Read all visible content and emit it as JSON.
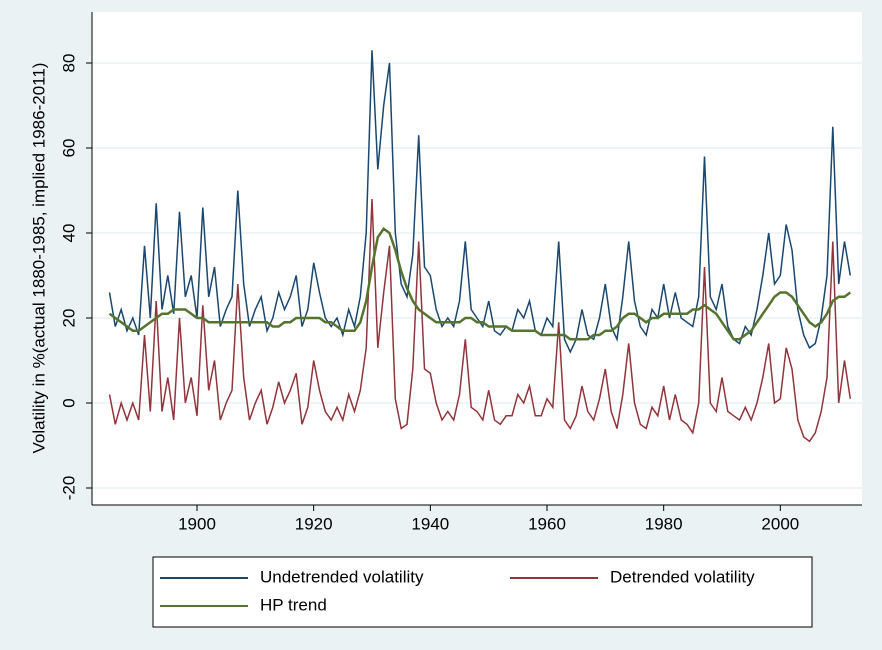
{
  "chart_data": {
    "type": "line",
    "y_label": "Volatility in %(actual 1880-1985, implied 1986-2011)",
    "x": [
      1885,
      1886,
      1887,
      1888,
      1889,
      1890,
      1891,
      1892,
      1893,
      1894,
      1895,
      1896,
      1897,
      1898,
      1899,
      1900,
      1901,
      1902,
      1903,
      1904,
      1905,
      1906,
      1907,
      1908,
      1909,
      1910,
      1911,
      1912,
      1913,
      1914,
      1915,
      1916,
      1917,
      1918,
      1919,
      1920,
      1921,
      1922,
      1923,
      1924,
      1925,
      1926,
      1927,
      1928,
      1929,
      1930,
      1931,
      1932,
      1933,
      1934,
      1935,
      1936,
      1937,
      1938,
      1939,
      1940,
      1941,
      1942,
      1943,
      1944,
      1945,
      1946,
      1947,
      1948,
      1949,
      1950,
      1951,
      1952,
      1953,
      1954,
      1955,
      1956,
      1957,
      1958,
      1959,
      1960,
      1961,
      1962,
      1963,
      1964,
      1965,
      1966,
      1967,
      1968,
      1969,
      1970,
      1971,
      1972,
      1973,
      1974,
      1975,
      1976,
      1977,
      1978,
      1979,
      1980,
      1981,
      1982,
      1983,
      1984,
      1985,
      1986,
      1987,
      1988,
      1989,
      1990,
      1991,
      1992,
      1993,
      1994,
      1995,
      1996,
      1997,
      1998,
      1999,
      2000,
      2001,
      2002,
      2003,
      2004,
      2005,
      2006,
      2007,
      2008,
      2009,
      2010,
      2011,
      2012
    ],
    "series": [
      {
        "name": "Undetrended volatility",
        "color": "#1a476f",
        "values": [
          26,
          18,
          22,
          17,
          20,
          16,
          37,
          20,
          47,
          22,
          30,
          21,
          45,
          25,
          30,
          20,
          46,
          25,
          32,
          18,
          22,
          25,
          50,
          28,
          18,
          22,
          25,
          17,
          20,
          26,
          22,
          25,
          30,
          18,
          22,
          33,
          26,
          20,
          18,
          20,
          16,
          22,
          18,
          25,
          40,
          83,
          55,
          70,
          80,
          40,
          28,
          25,
          35,
          63,
          32,
          30,
          22,
          18,
          20,
          18,
          24,
          38,
          22,
          20,
          18,
          24,
          17,
          16,
          18,
          17,
          22,
          20,
          24,
          17,
          16,
          20,
          18,
          38,
          15,
          12,
          15,
          22,
          16,
          15,
          20,
          28,
          18,
          15,
          25,
          38,
          24,
          18,
          16,
          22,
          20,
          28,
          20,
          26,
          20,
          19,
          18,
          25,
          58,
          25,
          22,
          28,
          18,
          15,
          14,
          18,
          16,
          22,
          30,
          40,
          28,
          30,
          42,
          36,
          22,
          16,
          13,
          14,
          20,
          30,
          65,
          28,
          38,
          30
        ]
      },
      {
        "name": "Detrended volatility",
        "color": "#90353b",
        "values": [
          2,
          -5,
          0,
          -4,
          0,
          -4,
          16,
          -2,
          24,
          -2,
          6,
          -4,
          20,
          0,
          6,
          -3,
          23,
          3,
          10,
          -4,
          0,
          3,
          28,
          6,
          -4,
          0,
          3,
          -5,
          -1,
          5,
          0,
          3,
          7,
          -5,
          -1,
          10,
          3,
          -2,
          -4,
          -1,
          -4,
          2,
          -2,
          3,
          13,
          48,
          13,
          26,
          37,
          1,
          -6,
          -5,
          8,
          38,
          8,
          7,
          0,
          -4,
          -2,
          -4,
          2,
          15,
          -1,
          -2,
          -4,
          3,
          -4,
          -5,
          -3,
          -3,
          2,
          0,
          4,
          -3,
          -3,
          1,
          -1,
          19,
          -4,
          -6,
          -3,
          4,
          -2,
          -4,
          1,
          8,
          -2,
          -6,
          2,
          14,
          0,
          -5,
          -6,
          -1,
          -3,
          4,
          -4,
          2,
          -4,
          -5,
          -7,
          0,
          32,
          0,
          -2,
          6,
          -2,
          -3,
          -4,
          -1,
          -4,
          0,
          6,
          14,
          0,
          1,
          13,
          8,
          -4,
          -8,
          -9,
          -7,
          -2,
          6,
          38,
          0,
          10,
          1
        ]
      },
      {
        "name": "HP trend",
        "color": "#55752f",
        "values": [
          21,
          20,
          19,
          18,
          17,
          17,
          18,
          19,
          20,
          21,
          21,
          22,
          22,
          22,
          21,
          20,
          20,
          19,
          19,
          19,
          19,
          19,
          19,
          19,
          19,
          19,
          19,
          19,
          18,
          18,
          19,
          19,
          20,
          20,
          20,
          20,
          20,
          19,
          19,
          18,
          17,
          17,
          17,
          19,
          24,
          32,
          39,
          41,
          40,
          36,
          31,
          27,
          24,
          22,
          21,
          20,
          19,
          19,
          19,
          19,
          19,
          20,
          20,
          19,
          19,
          18,
          18,
          18,
          18,
          17,
          17,
          17,
          17,
          17,
          16,
          16,
          16,
          16,
          16,
          15,
          15,
          15,
          15,
          16,
          16,
          17,
          17,
          18,
          20,
          21,
          21,
          20,
          19,
          20,
          20,
          21,
          21,
          21,
          21,
          21,
          22,
          22,
          23,
          22,
          21,
          19,
          17,
          15,
          15,
          16,
          17,
          19,
          21,
          23,
          25,
          26,
          26,
          25,
          23,
          21,
          19,
          18,
          19,
          21,
          24,
          25,
          25,
          26
        ]
      }
    ],
    "xlim": [
      1882,
      2014
    ],
    "ylim": [
      -24,
      92
    ],
    "xticks": [
      1900,
      1920,
      1940,
      1960,
      1980,
      2000
    ],
    "yticks": [
      -20,
      0,
      20,
      40,
      60,
      80
    ],
    "grid": true
  }
}
